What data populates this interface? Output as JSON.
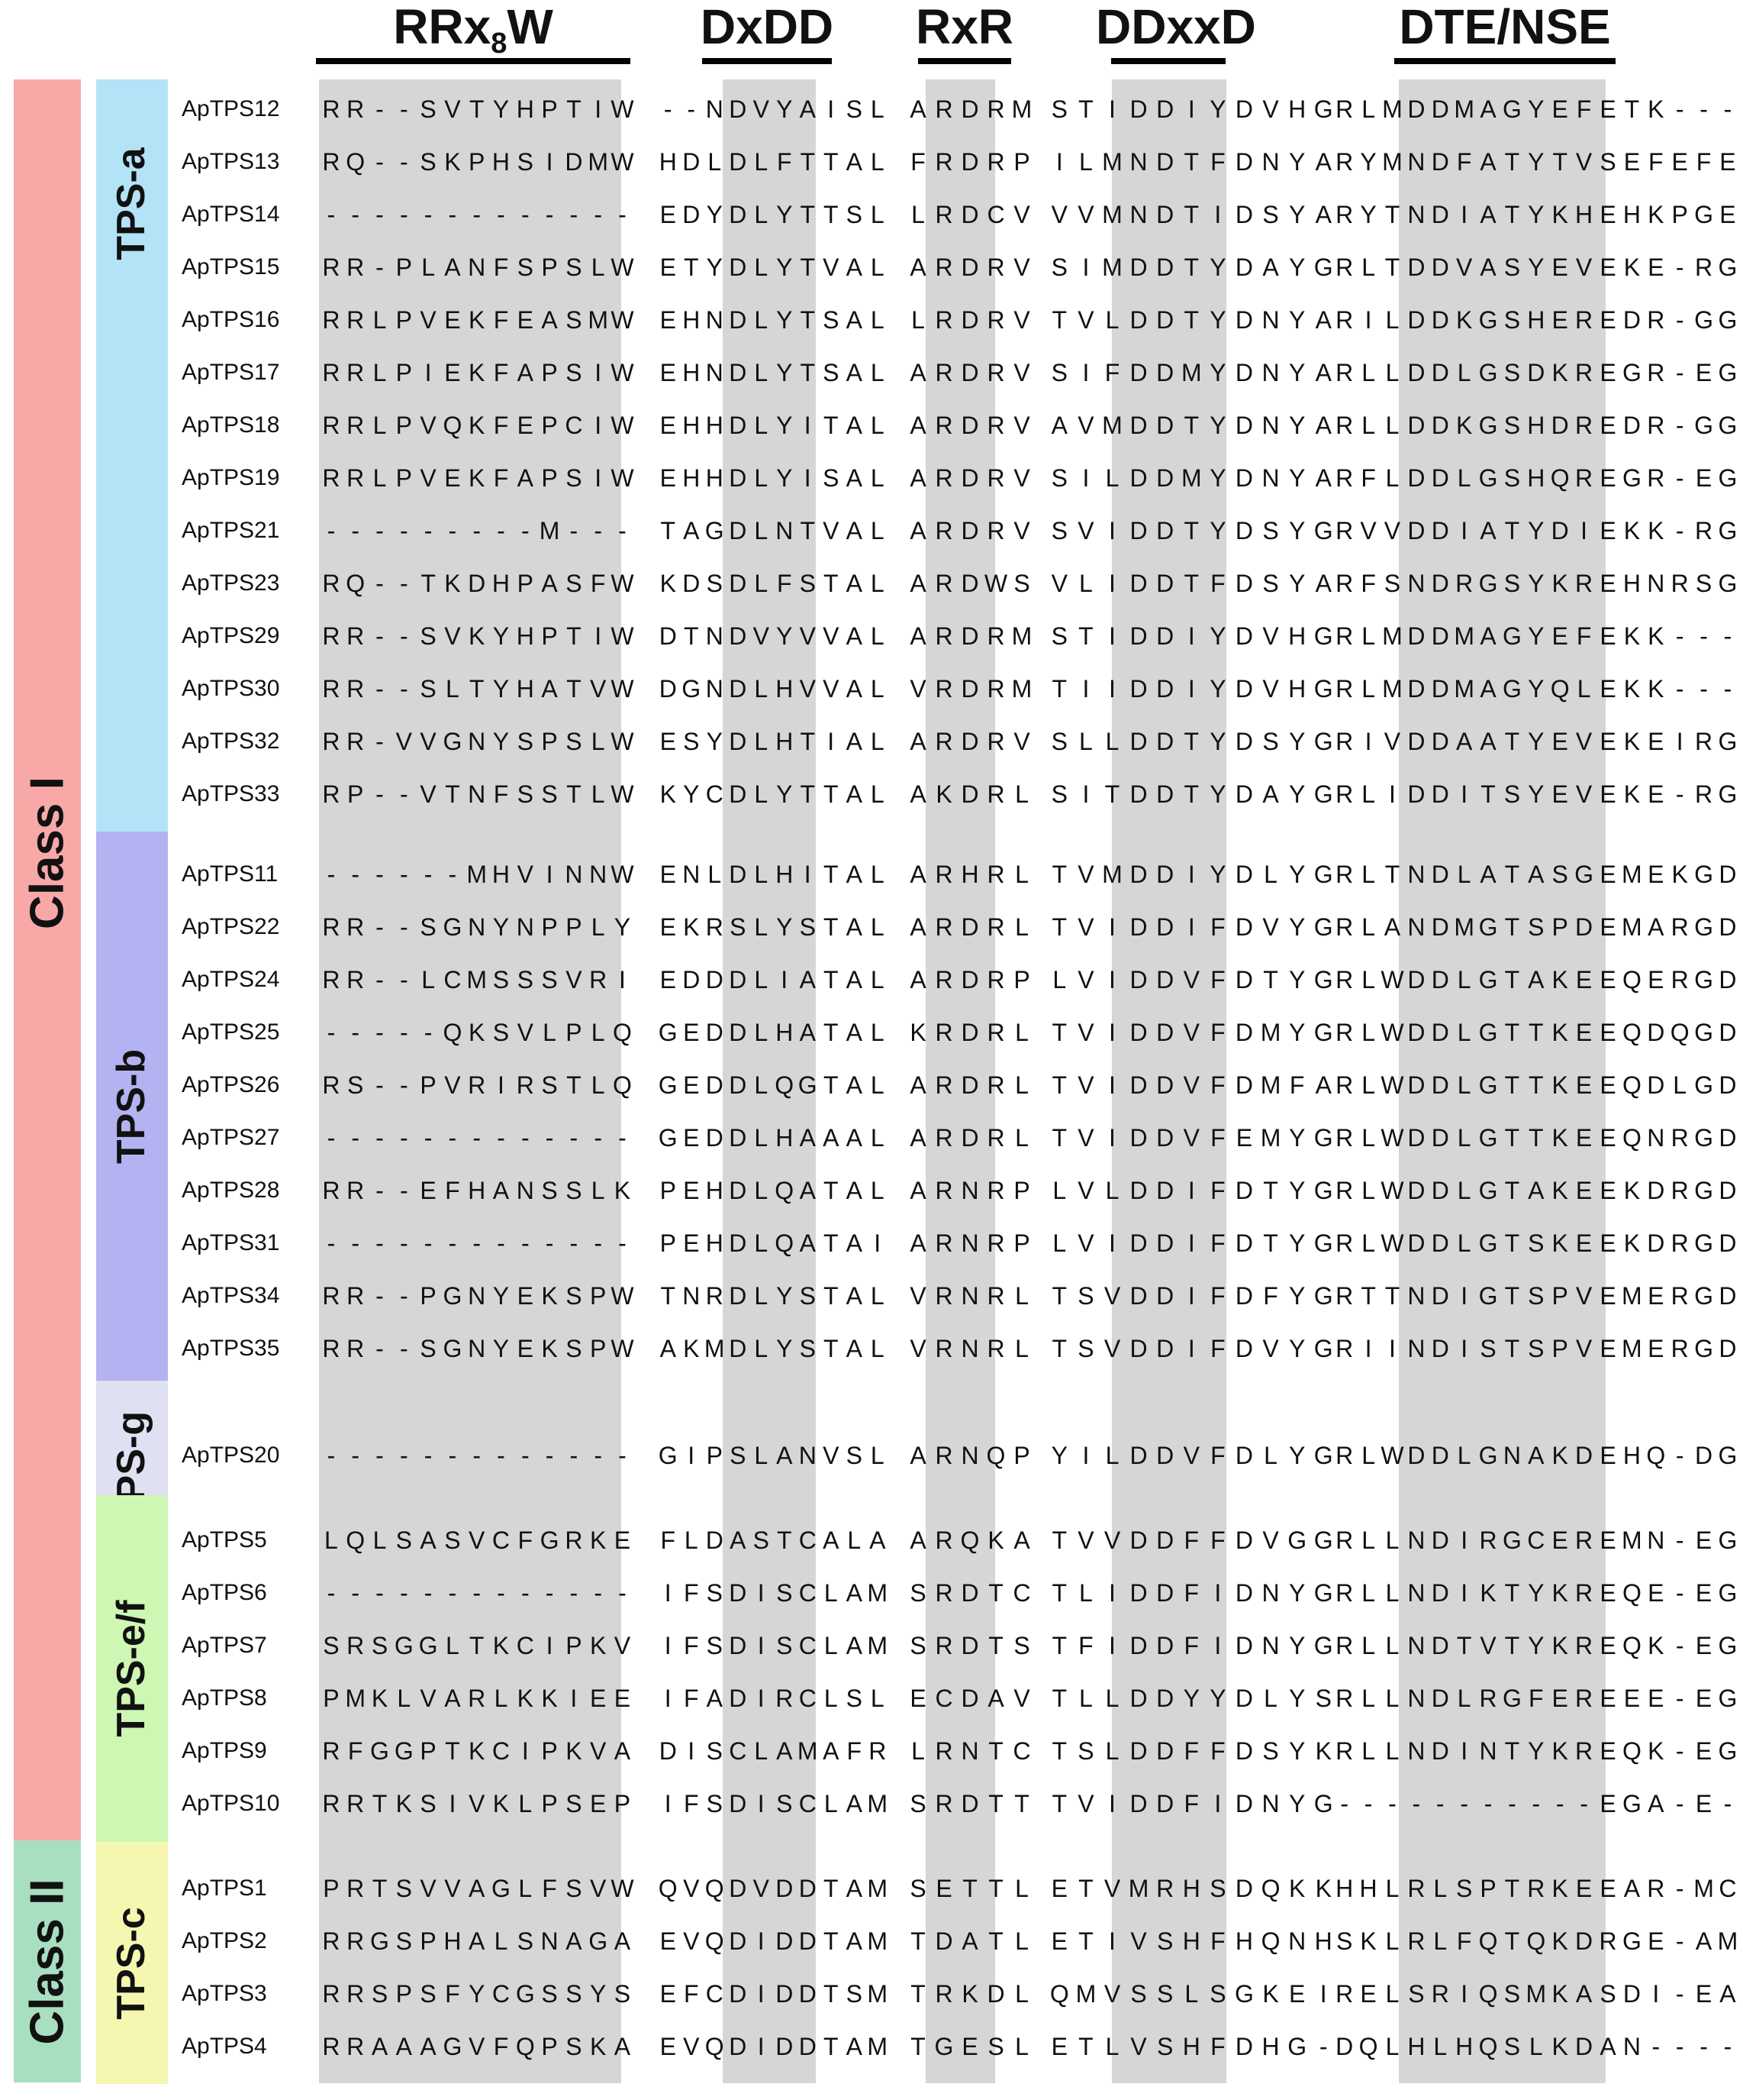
{
  "motifs": [
    {
      "label": "RRx8W",
      "display_prefix": "RRx",
      "display_sub": "8",
      "display_suffix": "W"
    },
    {
      "label": "DxDD"
    },
    {
      "label": "RxR"
    },
    {
      "label": "DDxxD"
    },
    {
      "label": "DTE/NSE"
    }
  ],
  "classes": [
    {
      "label": "Class I",
      "color": "#f9a8a8"
    },
    {
      "label": "Class II",
      "color": "#a8dfc0"
    }
  ],
  "groups": [
    {
      "label": "TPS-a",
      "color": "#b3e3f7"
    },
    {
      "label": "TPS-b",
      "color": "#b3b3f2"
    },
    {
      "label": "TPS-g",
      "color": "#dfe0f2"
    },
    {
      "label": "TPS-e/f",
      "color": "#cdf7b3"
    },
    {
      "label": "TPS-c",
      "color": "#f5f7b0"
    }
  ],
  "rows": [
    {
      "name": "ApTPS12",
      "group": "TPS-a",
      "s1": "RR--SVTYHPTIW",
      "s2": "--NDVYAISL",
      "s3": "ARDRM",
      "s4": "STIDDIYDVHG",
      "s5": "RLMDDMAGYEFETK---"
    },
    {
      "name": "ApTPS13",
      "group": "TPS-a",
      "s1": "RQ--SKPHSIDMW",
      "s2": "HDLDLFTTAL",
      "s3": "FRDRP",
      "s4": "ILMNDTFDNYA",
      "s5": "RYMNDFATYTVSEFEFE"
    },
    {
      "name": "ApTPS14",
      "group": "TPS-a",
      "s1": "-------------",
      "s2": "EDYDLYTTSL",
      "s3": "LRDCV",
      "s4": "VVMNDTIDSYA",
      "s5": "RYTNDIATYKHEHKPGE"
    },
    {
      "name": "ApTPS15",
      "group": "TPS-a",
      "s1": "RR-PLANFSPSLW",
      "s2": "ETYDLYTVAL",
      "s3": "ARDRV",
      "s4": "SIMDDTYDAYG",
      "s5": "RLTDDVASYEVEKE-RG"
    },
    {
      "name": "ApTPS16",
      "group": "TPS-a",
      "s1": "RRLPVEKFEASMW",
      "s2": "EHNDLYTSAL",
      "s3": "LRDRV",
      "s4": "TVLDDTYDNYA",
      "s5": "RILDDKGSHEREDR-GG"
    },
    {
      "name": "ApTPS17",
      "group": "TPS-a",
      "s1": "RRLPIEKFAPSIW",
      "s2": "EHNDLYTSAL",
      "s3": "ARDRV",
      "s4": "SIFDDMYDNYA",
      "s5": "RLLDDLGSDKREGR-EG"
    },
    {
      "name": "ApTPS18",
      "group": "TPS-a",
      "s1": "RRLPVQKFEPCIW",
      "s2": "EHHDLYITAL",
      "s3": "ARDRV",
      "s4": "AVMDDTYDNYA",
      "s5": "RLLDDKGSHDREDR-GG"
    },
    {
      "name": "ApTPS19",
      "group": "TPS-a",
      "s1": "RRLPVEKFAPSIW",
      "s2": "EHHDLYISAL",
      "s3": "ARDRV",
      "s4": "SILDDMYDNYA",
      "s5": "RFLDDLGSHQREGR-EG"
    },
    {
      "name": "ApTPS21",
      "group": "TPS-a",
      "s1": "---------M---",
      "s2": "TAGDLNTVAL",
      "s3": "ARDRV",
      "s4": "SVIDDTYDSYG",
      "s5": "RVVDDIATYDIEKK-RG"
    },
    {
      "name": "ApTPS23",
      "group": "TPS-a",
      "s1": "RQ--TKDHPASFW",
      "s2": "KDSDLFSTAL",
      "s3": "ARDWS",
      "s4": "VLIDDTFDSYA",
      "s5": "RFSNDRGSYKREHNRSG"
    },
    {
      "name": "ApTPS29",
      "group": "TPS-a",
      "s1": "RR--SVKYHPTIW",
      "s2": "DTNDVYVVAL",
      "s3": "ARDRM",
      "s4": "STIDDIYDVHG",
      "s5": "RLMDDMAGYEFEKK---"
    },
    {
      "name": "ApTPS30",
      "group": "TPS-a",
      "s1": "RR--SLTYHATVW",
      "s2": "DGNDLHVVAL",
      "s3": "VRDRM",
      "s4": "TIIDDIYDVHG",
      "s5": "RLMDDMAGYQLEKK---"
    },
    {
      "name": "ApTPS32",
      "group": "TPS-a",
      "s1": "RR-VVGNYSPSLW",
      "s2": "ESYDLHTIAL",
      "s3": "ARDRV",
      "s4": "SLLDDTYDSYG",
      "s5": "RIVDDAATYEVEKEIRG"
    },
    {
      "name": "ApTPS33",
      "group": "TPS-a",
      "s1": "RP--VTNFSSTLW",
      "s2": "KYCDLYTTAL",
      "s3": "AKDRL",
      "s4": "SITDDTYDAYG",
      "s5": "RLIDDITSYEVEKE-RG"
    },
    {
      "name": "ApTPS11",
      "group": "TPS-b",
      "s1": "------MHVINNW",
      "s2": "ENLDLHITAL",
      "s3": "ARHRL",
      "s4": "TVMDDIYDLYG",
      "s5": "RLTNDLATASGEMEKGD"
    },
    {
      "name": "ApTPS22",
      "group": "TPS-b",
      "s1": "RR--SGNYNPPLY",
      "s2": "EKRSLYSTAL",
      "s3": "ARDRL",
      "s4": "TVIDDIFDVYG",
      "s5": "RLANDMGTSPDEMARGD"
    },
    {
      "name": "ApTPS24",
      "group": "TPS-b",
      "s1": "RR--LCMSSSVRI",
      "s2": "EDDDLIATAL",
      "s3": "ARDRP",
      "s4": "LVIDDVFDTYG",
      "s5": "RLWDDLGTAKEEQERGD"
    },
    {
      "name": "ApTPS25",
      "group": "TPS-b",
      "s1": "-----QKSVLPLQ",
      "s2": "GEDDLHATAL",
      "s3": "KRDRL",
      "s4": "TVIDDVFDMYG",
      "s5": "RLWDDLGTTKEEQDQGD"
    },
    {
      "name": "ApTPS26",
      "group": "TPS-b",
      "s1": "RS--PVRIRSTLQ",
      "s2": "GEDDLQGTAL",
      "s3": "ARDRL",
      "s4": "TVIDDVFDMFA",
      "s5": "RLWDDLGTTKEEQDLGD"
    },
    {
      "name": "ApTPS27",
      "group": "TPS-b",
      "s1": "-------------",
      "s2": "GEDDLHAAAL",
      "s3": "ARDRL",
      "s4": "TVIDDVFEMYG",
      "s5": "RLWDDLGTTKEEQNRGD"
    },
    {
      "name": "ApTPS28",
      "group": "TPS-b",
      "s1": "RR--EFHANSSLK",
      "s2": "PEHDLQATAL",
      "s3": "ARNRP",
      "s4": "LVLDDIFDTYG",
      "s5": "RLWDDLGTAKEEKDRGD"
    },
    {
      "name": "ApTPS31",
      "group": "TPS-b",
      "s1": "-------------",
      "s2": "PEHDLQATAI",
      "s3": "ARNRP",
      "s4": "LVIDDIFDTYG",
      "s5": "RLWDDLGTSKEEKDRGD"
    },
    {
      "name": "ApTPS34",
      "group": "TPS-b",
      "s1": "RR--PGNYEKSPW",
      "s2": "TNRDLYSTAL",
      "s3": "VRNRL",
      "s4": "TSVDDIFDFYG",
      "s5": "RTTNDIGTSPVEMERGD"
    },
    {
      "name": "ApTPS35",
      "group": "TPS-b",
      "s1": "RR--SGNYEKSPW",
      "s2": "AKMDLYSTAL",
      "s3": "VRNRL",
      "s4": "TSVDDIFDVYG",
      "s5": "RIINDISTSPVEMERGD"
    },
    {
      "name": "ApTPS20",
      "group": "TPS-g",
      "s1": "-------------",
      "s2": "GIPSLANVSL",
      "s3": "ARNQP",
      "s4": "YILDDVFDLYG",
      "s5": "RLWDDLGNAKDEHQ-DG"
    },
    {
      "name": "ApTPS5",
      "group": "TPS-e/f",
      "s1": "LQLSASVCFGRKE",
      "s2": "FLDASTCALA",
      "s3": "ARQKA",
      "s4": "TVVDDFFDVGG",
      "s5": "RLLNDIRGCEREMN-EG"
    },
    {
      "name": "ApTPS6",
      "group": "TPS-e/f",
      "s1": "-------------",
      "s2": "IFSDISCLAM",
      "s3": "SRDTC",
      "s4": "TLIDDFIDNYG",
      "s5": "RLLNDIKTYKREQE-EG"
    },
    {
      "name": "ApTPS7",
      "group": "TPS-e/f",
      "s1": "SRSGGLTKCIPKV",
      "s2": "IFSDISCLAM",
      "s3": "SRDTS",
      "s4": "TFIDDFIDNYG",
      "s5": "RLLNDTVTYKREQK-EG"
    },
    {
      "name": "ApTPS8",
      "group": "TPS-e/f",
      "s1": "PMKLVARLKKIEE",
      "s2": "IFADIRCLSL",
      "s3": "ECDAV",
      "s4": "TLLDDYYDLYS",
      "s5": "RLLNDLRGFEREEE-EG"
    },
    {
      "name": "ApTPS9",
      "group": "TPS-e/f",
      "s1": "RFGGPTKCIPKVA",
      "s2": "DISCLAMAFR",
      "s3": "LRNTC",
      "s4": "TSLDDFFDSYK",
      "s5": "RLLNDINTYKREQK-EG"
    },
    {
      "name": "ApTPS10",
      "group": "TPS-e/f",
      "s1": "RRTKSIVKLPSEP",
      "s2": "IFSDISCLAM",
      "s3": "SRDTT",
      "s4": "TVIDDFIDNYG",
      "s5": "-----------EGA-E-"
    },
    {
      "name": "ApTPS1",
      "group": "TPS-c",
      "s1": "PRTSVVAGLFSVW",
      "s2": "QVQDVDDTAM",
      "s3": "SETTL",
      "s4": "ETVMRHSDQKK",
      "s5": "HHLRLSPTRKEEAR-MC"
    },
    {
      "name": "ApTPS2",
      "group": "TPS-c",
      "s1": "RRGSPHALSNAGA",
      "s2": "EVQDIDDTAM",
      "s3": "TDATL",
      "s4": "ETIVSHFHQNH",
      "s5": "SKLRLFQTQKDRGE-AM"
    },
    {
      "name": "ApTPS3",
      "group": "TPS-c",
      "s1": "RRSPSFYCGSSYS",
      "s2": "EFCDIDDTSM",
      "s3": "TRKDL",
      "s4": "QMVSSLSGKEI",
      "s5": "RELSRIQSMKASDI-EA"
    },
    {
      "name": "ApTPS4",
      "group": "TPS-c",
      "s1": "RRAAAGVFQPSKA",
      "s2": "EVQDIDDTAM",
      "s3": "TGESL",
      "s4": "ETLVSHFDHG-",
      "s5": "DQLHLHQSLKDAN----"
    }
  ]
}
